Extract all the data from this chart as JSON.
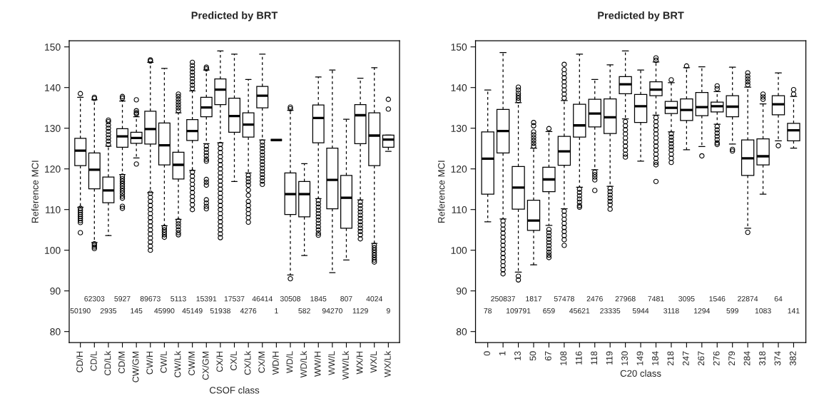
{
  "chart_data": [
    {
      "type": "box",
      "title": "Predicted by BRT",
      "xlabel": "CSOF class",
      "ylabel": "Reference MCI",
      "categories": [
        "CD/H",
        "CD/L",
        "CD/Lk",
        "CD/M",
        "CW/GM",
        "CW/H",
        "CW/L",
        "CW/Lk",
        "CW/M",
        "CX/GM",
        "CX/H",
        "CX/L",
        "CX/Lk",
        "CX/M",
        "WD/H",
        "WD/L",
        "WD/Lk",
        "WW/H",
        "WW/L",
        "WW/Lk",
        "WX/H",
        "WX/L",
        "WX/Lk"
      ],
      "ylim": [
        77.3,
        151.5
      ],
      "yticks": [
        80,
        90,
        100,
        110,
        120,
        130,
        140,
        150
      ],
      "boxes": [
        {
          "low": 110.6,
          "q1": 120.8,
          "median": 124.5,
          "q3": 127.5,
          "high": 137.6,
          "outliers": [
            138.5,
            110.3,
            109.8,
            109.3,
            108.8,
            108.3,
            107.8,
            107.3,
            106.8,
            104.3
          ]
        },
        {
          "low": 101.9,
          "q1": 115.1,
          "median": 119.8,
          "q3": 123.9,
          "high": 137.0,
          "outliers": [
            137.3,
            137.6,
            101.6,
            101.2,
            100.8,
            100.4
          ]
        },
        {
          "low": 103.6,
          "q1": 111.7,
          "median": 114.7,
          "q3": 118.0,
          "high": 125.6,
          "outliers": [
            126.0,
            126.8,
            127.6,
            128.4,
            129.2,
            130.0,
            130.8,
            131.6,
            132.0
          ]
        },
        {
          "low": 118.6,
          "q1": 125.3,
          "median": 128.0,
          "q3": 129.9,
          "high": 136.7,
          "outliers": [
            137.4,
            137.8,
            118.2,
            117.6,
            117.0,
            116.4,
            115.8,
            115.2,
            114.6,
            114.0,
            113.3,
            112.8,
            110.8,
            110.3
          ]
        },
        {
          "low": 122.7,
          "q1": 126.3,
          "median": 127.6,
          "q3": 129.0,
          "high": 132.8,
          "outliers": [
            137.0,
            134.3,
            133.8,
            133.5,
            121.2
          ]
        },
        {
          "low": 114.2,
          "q1": 126.1,
          "median": 129.8,
          "q3": 134.2,
          "high": 146.2,
          "outliers": [
            146.5,
            146.8,
            114.0,
            113.0,
            112.0,
            111.0,
            110.0,
            109.0,
            108.0,
            107.0,
            106.0,
            105.0,
            104.0,
            103.0,
            102.0,
            101.0,
            100.0
          ]
        },
        {
          "low": 106.0,
          "q1": 121.0,
          "median": 125.8,
          "q3": 131.3,
          "high": 144.7,
          "outliers": [
            105.6,
            105.0,
            104.4,
            103.8,
            103.2
          ]
        },
        {
          "low": 107.6,
          "q1": 117.5,
          "median": 121.0,
          "q3": 124.1,
          "high": 133.8,
          "outliers": [
            134.3,
            135.0,
            135.7,
            136.4,
            137.1,
            137.8,
            138.4,
            107.2,
            106.5,
            105.8,
            105.0,
            104.3,
            103.8
          ]
        },
        {
          "low": 119.6,
          "q1": 127.0,
          "median": 129.3,
          "q3": 132.1,
          "high": 139.2,
          "outliers": [
            139.8,
            140.6,
            141.4,
            142.2,
            143.0,
            143.8,
            144.6,
            145.4,
            146.2,
            119.2,
            118.2,
            117.2,
            116.2,
            115.2,
            114.2,
            113.2,
            112.2,
            111.2,
            110.0
          ]
        },
        {
          "low": 126.2,
          "q1": 132.8,
          "median": 135.1,
          "q3": 137.6,
          "high": 144.3,
          "outliers": [
            144.6,
            145.0,
            125.6,
            124.8,
            124.0,
            123.2,
            122.4,
            121.9,
            117.4,
            116.7,
            116.0,
            112.4,
            111.6,
            110.8,
            110.2
          ]
        },
        {
          "low": 126.4,
          "q1": 135.8,
          "median": 139.5,
          "q3": 142.1,
          "high": 149.0,
          "outliers": [
            126.0,
            125.0,
            124.0,
            123.0,
            122.0,
            121.0,
            120.0,
            119.0,
            118.0,
            117.0,
            116.0,
            115.0,
            114.0,
            113.0,
            112.0,
            111.0,
            110.0,
            109.0,
            108.0,
            107.0,
            106.0,
            105.0,
            104.0,
            103.1
          ]
        },
        {
          "low": 116.9,
          "q1": 129.0,
          "median": 133.0,
          "q3": 137.4,
          "high": 148.2
        },
        {
          "low": 119.0,
          "q1": 127.8,
          "median": 130.9,
          "q3": 133.8,
          "high": 142.0,
          "outliers": [
            118.4,
            117.6,
            116.8,
            116.0,
            114.8,
            113.5,
            112.0,
            111.0,
            110.0,
            109.0,
            108.0,
            106.9
          ]
        },
        {
          "low": 127.1,
          "q1": 135.0,
          "median": 138.0,
          "q3": 140.3,
          "high": 148.2,
          "outliers": [
            126.6,
            125.8,
            125.0,
            124.2,
            123.4,
            122.6,
            121.8,
            121.0,
            120.2,
            119.4,
            118.6,
            117.8,
            117.0,
            116.2
          ]
        },
        {
          "low": 127.1,
          "q1": 127.1,
          "median": 127.1,
          "q3": 127.1,
          "high": 127.1
        },
        {
          "low": 93.9,
          "q1": 108.8,
          "median": 113.8,
          "q3": 119.0,
          "high": 134.4,
          "outliers": [
            134.8,
            135.2,
            93.0
          ]
        },
        {
          "low": 98.7,
          "q1": 108.2,
          "median": 113.8,
          "q3": 116.9,
          "high": 121.3
        },
        {
          "low": 112.7,
          "q1": 126.4,
          "median": 132.5,
          "q3": 135.7,
          "high": 142.6,
          "outliers": [
            112.2,
            111.4,
            110.6,
            109.8,
            109.0,
            108.2,
            107.4,
            106.6,
            105.8,
            105.0,
            104.2,
            103.7
          ]
        },
        {
          "low": 94.5,
          "q1": 110.2,
          "median": 117.3,
          "q3": 125.1,
          "high": 144.3
        },
        {
          "low": 97.6,
          "q1": 105.4,
          "median": 112.9,
          "q3": 118.4,
          "high": 132.2
        },
        {
          "low": 112.4,
          "q1": 126.2,
          "median": 133.2,
          "q3": 135.8,
          "high": 142.3,
          "outliers": [
            111.8,
            111.0,
            110.2,
            109.4,
            108.6,
            107.8,
            107.0,
            106.2,
            105.4,
            104.6,
            103.8,
            102.8
          ]
        },
        {
          "low": 101.7,
          "q1": 120.8,
          "median": 128.2,
          "q3": 133.8,
          "high": 144.9,
          "outliers": [
            101.2,
            100.6,
            100.0,
            99.4,
            98.8,
            98.2,
            97.6,
            97.1
          ]
        },
        {
          "low": 124.3,
          "q1": 125.3,
          "median": 127.2,
          "q3": 128.3,
          "high": 128.3,
          "outliers": [
            137.1,
            134.7
          ]
        }
      ],
      "annotations": [
        "50190",
        "62303",
        "2935",
        "5927",
        "145",
        "89673",
        "45990",
        "5113",
        "45149",
        "15391",
        "51938",
        "17537",
        "4276",
        "46414",
        "1",
        "30508",
        "582",
        "1845",
        "94270",
        "807",
        "1129",
        "4024",
        "9"
      ]
    },
    {
      "type": "box",
      "title": "Predicted by BRT",
      "xlabel": "C20 class",
      "ylabel": "Reference MCI",
      "categories": [
        "0",
        "1",
        "13",
        "50",
        "67",
        "108",
        "116",
        "118",
        "119",
        "130",
        "149",
        "184",
        "218",
        "247",
        "267",
        "276",
        "279",
        "284",
        "318",
        "374",
        "382"
      ],
      "ylim": [
        77.3,
        151.5
      ],
      "yticks": [
        80,
        90,
        100,
        110,
        120,
        130,
        140,
        150
      ],
      "boxes": [
        {
          "low": 107.0,
          "q1": 113.8,
          "median": 122.5,
          "q3": 129.1,
          "high": 139.4
        },
        {
          "low": 107.7,
          "q1": 123.9,
          "median": 129.3,
          "q3": 134.6,
          "high": 148.6,
          "outliers": [
            107.2,
            106.2,
            105.2,
            104.2,
            103.2,
            102.2,
            101.2,
            100.2,
            99.2,
            98.2,
            97.2,
            96.2,
            95.2,
            94.2
          ]
        },
        {
          "low": 94.6,
          "q1": 110.1,
          "median": 115.4,
          "q3": 120.6,
          "high": 136.3,
          "outliers": [
            136.8,
            137.4,
            138.0,
            138.6,
            139.4,
            140.1,
            93.6,
            92.7
          ]
        },
        {
          "low": 96.4,
          "q1": 104.9,
          "median": 107.3,
          "q3": 112.3,
          "high": 125.1,
          "outliers": [
            125.6,
            126.3,
            127.0,
            127.7,
            128.4,
            129.1,
            130.6,
            131.4
          ]
        },
        {
          "low": 106.1,
          "q1": 114.4,
          "median": 117.4,
          "q3": 120.4,
          "high": 129.2,
          "outliers": [
            129.9,
            105.1,
            104.3,
            103.5,
            102.7,
            101.9,
            101.1,
            100.3,
            99.5,
            98.8,
            98.2
          ]
        },
        {
          "low": 110.2,
          "q1": 120.9,
          "median": 124.3,
          "q3": 128.0,
          "high": 136.8,
          "outliers": [
            137.4,
            138.4,
            139.4,
            140.4,
            141.4,
            142.4,
            143.4,
            144.4,
            145.7,
            109.6,
            108.6,
            107.6,
            106.6,
            105.6,
            104.6,
            103.6,
            102.6,
            101.2
          ]
        },
        {
          "low": 115.5,
          "q1": 127.8,
          "median": 130.7,
          "q3": 135.9,
          "high": 148.2,
          "outliers": [
            115.0,
            114.2,
            113.4,
            112.6,
            111.8,
            111.0,
            110.6
          ]
        },
        {
          "low": 119.8,
          "q1": 130.3,
          "median": 133.6,
          "q3": 137.1,
          "high": 142.0,
          "outliers": [
            119.2,
            118.6,
            118.0,
            117.3,
            114.7
          ]
        },
        {
          "low": 115.7,
          "q1": 128.7,
          "median": 132.7,
          "q3": 137.2,
          "high": 145.6,
          "outliers": [
            115.2,
            114.4,
            113.6,
            112.8,
            112.0,
            111.2,
            110.1
          ]
        },
        {
          "low": 132.3,
          "q1": 138.5,
          "median": 140.8,
          "q3": 142.7,
          "high": 149.0,
          "outliers": [
            131.6,
            130.6,
            129.6,
            128.6,
            127.6,
            126.6,
            125.6,
            124.6,
            123.6,
            122.9
          ]
        },
        {
          "low": 121.9,
          "q1": 131.4,
          "median": 135.4,
          "q3": 138.3,
          "high": 144.3
        },
        {
          "low": 133.2,
          "q1": 138.0,
          "median": 139.5,
          "q3": 141.4,
          "high": 146.3,
          "outliers": [
            146.7,
            147.3,
            132.6,
            131.6,
            130.6,
            129.6,
            128.6,
            127.6,
            126.6,
            125.6,
            124.6,
            123.6,
            122.6,
            121.6,
            121.0,
            116.9
          ]
        },
        {
          "low": 129.1,
          "q1": 133.6,
          "median": 135.0,
          "q3": 136.6,
          "high": 141.2,
          "outliers": [
            141.9,
            128.6,
            127.8,
            127.0,
            126.2,
            125.4,
            124.6,
            123.6,
            122.6,
            121.6
          ]
        },
        {
          "low": 124.7,
          "q1": 131.9,
          "median": 134.5,
          "q3": 137.2,
          "high": 144.9,
          "outliers": [
            145.3
          ]
        },
        {
          "low": 125.5,
          "q1": 133.1,
          "median": 135.2,
          "q3": 138.8,
          "high": 145.1,
          "outliers": [
            123.2
          ]
        },
        {
          "low": 131.0,
          "q1": 134.0,
          "median": 135.4,
          "q3": 136.4,
          "high": 139.0,
          "outliers": [
            139.7,
            140.4,
            130.4,
            129.6,
            128.8,
            128.0,
            127.2,
            126.4,
            126.0
          ]
        },
        {
          "low": 126.1,
          "q1": 132.8,
          "median": 135.3,
          "q3": 138.0,
          "high": 145.0,
          "outliers": [
            124.8,
            124.4
          ]
        },
        {
          "low": 105.4,
          "q1": 118.4,
          "median": 122.6,
          "q3": 127.1,
          "high": 140.1,
          "outliers": [
            140.7,
            141.4,
            142.1,
            142.8,
            143.6,
            104.4
          ]
        },
        {
          "low": 113.8,
          "q1": 121.0,
          "median": 123.1,
          "q3": 127.4,
          "high": 136.0,
          "outliers": [
            137.1,
            137.7,
            138.4
          ]
        },
        {
          "low": 126.9,
          "q1": 133.3,
          "median": 135.9,
          "q3": 138.0,
          "high": 143.6,
          "outliers": [
            125.7
          ]
        },
        {
          "low": 125.1,
          "q1": 126.9,
          "median": 129.5,
          "q3": 131.2,
          "high": 137.8,
          "outliers": [
            138.4,
            139.5
          ]
        }
      ],
      "annotations": [
        "78",
        "250837",
        "109791",
        "1817",
        "659",
        "57478",
        "45621",
        "2476",
        "23335",
        "27968",
        "5944",
        "7481",
        "3118",
        "3095",
        "1294",
        "1546",
        "599",
        "22874",
        "1083",
        "64",
        "141"
      ]
    }
  ]
}
